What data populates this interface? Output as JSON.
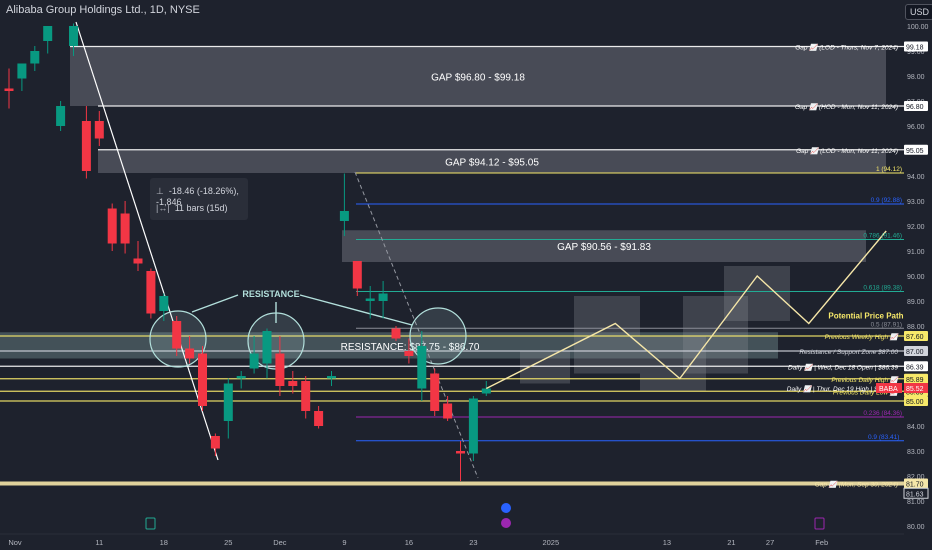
{
  "header": {
    "title": "Alibaba Group Holdings Ltd., 1D, NYSE",
    "currency": "USD"
  },
  "measure_tooltip": {
    "change": "-18.46 (-18.26%), -1,846",
    "bars": "11 bars (15d)",
    "change_icon": "range-icon",
    "bars_icon": "bars-icon"
  },
  "colors": {
    "background": "#1e222d",
    "up": "#089981",
    "down": "#f23645",
    "text": "#d1d4dc",
    "gap_box": "#6b6e78",
    "white_line": "#ffffff",
    "yellow": "#f7e96a",
    "blue": "#2962ff",
    "teal": "#22ab94",
    "purple": "#9c27b0",
    "path": "#f5e6a8"
  },
  "chart_data": {
    "type": "candlestick",
    "title": "Alibaba Group Holdings Ltd., 1D, NYSE",
    "ylim": [
      80,
      100
    ],
    "y_ticks": [
      80,
      81,
      82,
      83,
      84,
      85,
      86,
      87,
      88,
      89,
      90,
      91,
      92,
      93,
      94,
      95,
      96,
      97,
      98,
      99,
      100
    ],
    "y_tick_labels": [
      "80.00",
      "81.00",
      "82.00",
      "83.00",
      "84.00",
      "85.00",
      "86.00",
      "87.00",
      "88.00",
      "89.00",
      "90.00",
      "91.00",
      "92.00",
      "93.00",
      "94.00",
      "95.00",
      "96.00",
      "97.00",
      "98.00",
      "99.00",
      "100.00"
    ],
    "x_labels": [
      {
        "label": "Nov",
        "index": 0
      },
      {
        "label": "11",
        "index": 7
      },
      {
        "label": "18",
        "index": 12
      },
      {
        "label": "25",
        "index": 17
      },
      {
        "label": "Dec",
        "index": 21
      },
      {
        "label": "9",
        "index": 26
      },
      {
        "label": "16",
        "index": 31
      },
      {
        "label": "23",
        "index": 36
      },
      {
        "label": "2025",
        "index": 42
      },
      {
        "label": "13",
        "index": 51
      },
      {
        "label": "21",
        "index": 56
      },
      {
        "label": "27",
        "index": 59
      },
      {
        "label": "Feb",
        "index": 63
      }
    ],
    "candles": [
      {
        "i": 0,
        "o": 97.5,
        "h": 98.3,
        "l": 96.7,
        "c": 97.4
      },
      {
        "i": 1,
        "o": 97.9,
        "h": 98.5,
        "l": 97.4,
        "c": 98.5
      },
      {
        "i": 2,
        "o": 98.5,
        "h": 99.2,
        "l": 98.2,
        "c": 99.0
      },
      {
        "i": 3,
        "o": 99.4,
        "h": 100.0,
        "l": 98.9,
        "c": 100.0
      },
      {
        "i": 4,
        "o": 96.0,
        "h": 97.0,
        "l": 95.8,
        "c": 96.8
      },
      {
        "i": 5,
        "o": 99.2,
        "h": 100.1,
        "l": 98.8,
        "c": 100.0
      },
      {
        "i": 6,
        "o": 96.2,
        "h": 96.8,
        "l": 93.9,
        "c": 94.2
      },
      {
        "i": 7,
        "o": 96.2,
        "h": 96.6,
        "l": 95.2,
        "c": 95.5
      },
      {
        "i": 8,
        "o": 92.7,
        "h": 92.9,
        "l": 91.0,
        "c": 91.3
      },
      {
        "i": 9,
        "o": 92.5,
        "h": 93.0,
        "l": 90.9,
        "c": 91.3
      },
      {
        "i": 10,
        "o": 90.7,
        "h": 91.4,
        "l": 90.2,
        "c": 90.5
      },
      {
        "i": 11,
        "o": 90.2,
        "h": 90.3,
        "l": 88.3,
        "c": 88.5
      },
      {
        "i": 12,
        "o": 88.6,
        "h": 89.3,
        "l": 88.2,
        "c": 89.2
      },
      {
        "i": 13,
        "o": 88.2,
        "h": 88.4,
        "l": 86.8,
        "c": 87.1
      },
      {
        "i": 14,
        "o": 87.1,
        "h": 87.6,
        "l": 86.5,
        "c": 86.7
      },
      {
        "i": 15,
        "o": 86.9,
        "h": 87.2,
        "l": 84.6,
        "c": 84.8
      },
      {
        "i": 16,
        "o": 83.6,
        "h": 83.7,
        "l": 82.8,
        "c": 83.1
      },
      {
        "i": 17,
        "o": 84.2,
        "h": 85.9,
        "l": 83.5,
        "c": 85.7
      },
      {
        "i": 18,
        "o": 85.9,
        "h": 86.2,
        "l": 85.5,
        "c": 86.0
      },
      {
        "i": 19,
        "o": 86.3,
        "h": 87.6,
        "l": 86.1,
        "c": 86.9
      },
      {
        "i": 20,
        "o": 86.5,
        "h": 87.9,
        "l": 85.9,
        "c": 87.8
      },
      {
        "i": 21,
        "o": 86.9,
        "h": 87.6,
        "l": 85.2,
        "c": 85.6
      },
      {
        "i": 22,
        "o": 85.8,
        "h": 86.2,
        "l": 85.3,
        "c": 85.6
      },
      {
        "i": 23,
        "o": 85.8,
        "h": 86.0,
        "l": 84.3,
        "c": 84.6
      },
      {
        "i": 24,
        "o": 84.6,
        "h": 84.8,
        "l": 83.9,
        "c": 84.0
      },
      {
        "i": 25,
        "o": 85.9,
        "h": 86.2,
        "l": 85.6,
        "c": 86.0
      },
      {
        "i": 26,
        "o": 92.2,
        "h": 94.1,
        "l": 91.6,
        "c": 92.6
      },
      {
        "i": 27,
        "o": 90.6,
        "h": 90.6,
        "l": 89.2,
        "c": 89.5
      },
      {
        "i": 28,
        "o": 89.0,
        "h": 89.6,
        "l": 88.3,
        "c": 89.1
      },
      {
        "i": 29,
        "o": 89.0,
        "h": 89.8,
        "l": 88.3,
        "c": 89.3
      },
      {
        "i": 30,
        "o": 87.9,
        "h": 88.0,
        "l": 87.4,
        "c": 87.5
      },
      {
        "i": 31,
        "o": 87.0,
        "h": 87.5,
        "l": 86.5,
        "c": 86.8
      },
      {
        "i": 32,
        "o": 85.5,
        "h": 87.8,
        "l": 85.0,
        "c": 87.2
      },
      {
        "i": 33,
        "o": 86.1,
        "h": 86.3,
        "l": 84.4,
        "c": 84.6
      },
      {
        "i": 34,
        "o": 84.9,
        "h": 85.2,
        "l": 84.2,
        "c": 84.3
      },
      {
        "i": 35,
        "o": 83.0,
        "h": 83.4,
        "l": 81.8,
        "c": 82.9
      },
      {
        "i": 36,
        "o": 82.9,
        "h": 85.2,
        "l": 82.6,
        "c": 85.1
      },
      {
        "i": 37,
        "o": 85.3,
        "h": 85.8,
        "l": 85.2,
        "c": 85.5
      }
    ],
    "gaps": [
      {
        "label": "GAP $96.80 - $99.18",
        "low": 96.8,
        "high": 99.18
      },
      {
        "label": "GAP $94.12 - $95.05",
        "low": 94.12,
        "high": 95.05
      },
      {
        "label": "GAP $90.56 - $91.83",
        "low": 90.56,
        "high": 91.83
      }
    ],
    "horizontal_levels": [
      {
        "price": 99.18,
        "text": "Gap 📈 (LOD - Thurs, Nov 7, 2024)",
        "tag": "99.18",
        "color": "#ffffff"
      },
      {
        "price": 96.8,
        "text": "Gap 📈 (HOD - Mon, Nov 11, 2024)",
        "tag": "96.80",
        "color": "#ffffff"
      },
      {
        "price": 95.05,
        "text": "Gap 📈 (LOD - Mon, Nov 11, 2024)",
        "tag": "95.05",
        "color": "#ffffff"
      },
      {
        "price": 87.6,
        "text": "Previous Weekly High 📈",
        "tag": "87.60",
        "color": "#f7e96a"
      },
      {
        "price": 87.0,
        "text": "Resistance / Support Zone $87.00",
        "tag": "87.00",
        "color": "#d1d4dc"
      },
      {
        "price": 86.39,
        "text": "Daily 📈 | Wed, Dec 18 Open | $86.39",
        "tag": "86.39",
        "color": "#ffffff"
      },
      {
        "price": 85.89,
        "text": "Previous Daily High 📈",
        "tag": "85.89",
        "color": "#f7e96a"
      },
      {
        "price": 85.39,
        "text": "Previous Daily Low 📈",
        "tag": "85.39",
        "color": "#f7e96a"
      },
      {
        "price": 85.0,
        "text": "",
        "tag": "85.00",
        "color": "#f7e96a"
      },
      {
        "price": 81.7,
        "text": "Gap 📈 (Mon, Sep 30, 2024)",
        "tag": "81.70",
        "color": "#f5e6a8"
      }
    ],
    "fib_levels": [
      {
        "ratio": "1",
        "price": 94.12,
        "label": "1 (94.12)",
        "color": "#f7e96a"
      },
      {
        "ratio": "0.9",
        "price": 92.88,
        "label": "0.9 (92.88)",
        "color": "#2962ff"
      },
      {
        "ratio": "0.786",
        "price": 91.46,
        "label": "0.786 (91.46)",
        "color": "#22ab94"
      },
      {
        "ratio": "0.618",
        "price": 89.38,
        "label": "0.618 (89.38)",
        "color": "#22ab94"
      },
      {
        "ratio": "0.5",
        "price": 87.91,
        "label": "0.5 (87.91)",
        "color": "#8a8d96"
      },
      {
        "ratio": "0.236",
        "price": 84.36,
        "label": "0.236 (84.36)",
        "color": "#9c27b0"
      },
      {
        "ratio": "0.9",
        "price": 83.41,
        "label": "0.9 (83.41)",
        "color": "#2962ff"
      }
    ],
    "resistance_zone": {
      "label": "RESISTANCE: $87.75 - $86.70",
      "low": 86.7,
      "high": 87.75
    },
    "annotations": [
      {
        "text": "RESISTANCE"
      },
      {
        "text": "Potential Price Path"
      },
      {
        "text": "Daily 📈 | Thur, Dec 19 High | $85.52"
      }
    ],
    "price_tags": [
      {
        "text": "BABA",
        "price": 85.52,
        "color": "#f23645"
      },
      {
        "text": "85.52",
        "price": 85.52,
        "color": "#f23645"
      },
      {
        "text": "81.63",
        "price": 81.63,
        "color": "#d1d4dc"
      }
    ],
    "potential_path": [
      {
        "i": 37,
        "p": 85.5
      },
      {
        "i": 47,
        "p": 88.1
      },
      {
        "i": 52,
        "p": 85.9
      },
      {
        "i": 58,
        "p": 90.0
      },
      {
        "i": 62,
        "p": 88.1
      },
      {
        "i": 68,
        "p": 91.8
      }
    ],
    "grid": false
  }
}
